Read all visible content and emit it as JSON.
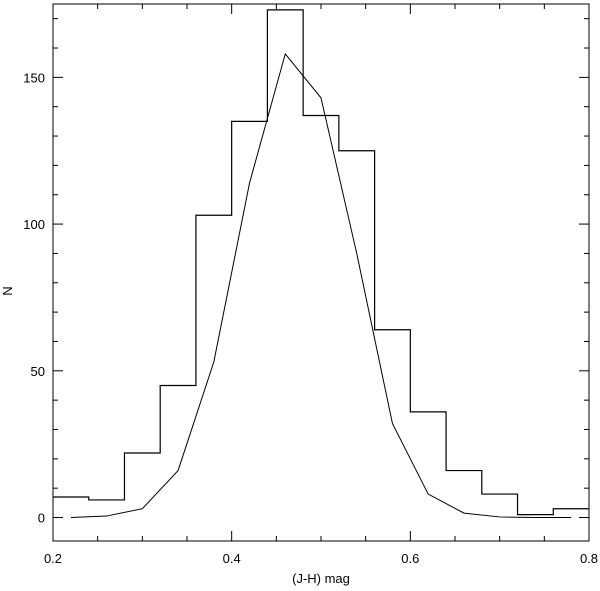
{
  "chart_data": {
    "type": "line",
    "title": "",
    "xlabel": "(J-H) mag",
    "ylabel": "N",
    "xlim": [
      0.2,
      0.8
    ],
    "ylim": [
      -8,
      175
    ],
    "grid": false,
    "x_ticks": [
      "0.2",
      "0.4",
      "0.6",
      "0.8"
    ],
    "y_ticks": [
      "0",
      "50",
      "100",
      "150"
    ],
    "series": [
      {
        "style": "step-histogram",
        "bin_edges": [
          0.2,
          0.24,
          0.28,
          0.32,
          0.36,
          0.4,
          0.44,
          0.48,
          0.52,
          0.56,
          0.6,
          0.64,
          0.68,
          0.72,
          0.76,
          0.8
        ],
        "values": [
          7,
          6,
          22,
          45,
          103,
          135,
          173,
          137,
          125,
          64,
          36,
          16,
          8,
          1,
          3
        ]
      },
      {
        "style": "line",
        "x": [
          0.22,
          0.26,
          0.3,
          0.34,
          0.38,
          0.42,
          0.46,
          0.5,
          0.54,
          0.58,
          0.62,
          0.66,
          0.7,
          0.74,
          0.78
        ],
        "y": [
          0,
          0.5,
          3,
          16,
          53,
          114,
          158,
          143,
          90,
          32,
          8,
          1.5,
          0.2,
          0,
          0
        ]
      }
    ]
  }
}
